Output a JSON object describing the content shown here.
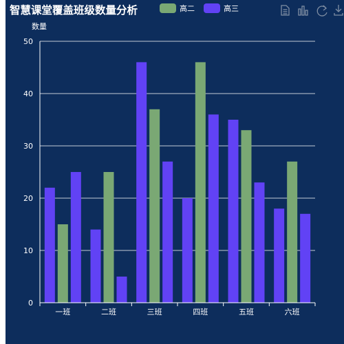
{
  "colors": {
    "background": "#0d2d5c",
    "text": "#ffffff",
    "toolbox": "#7f8ea3",
    "grid": "#ffffff"
  },
  "toolbox": {
    "icons": [
      "data-view-icon",
      "bar-chart-icon",
      "restore-icon",
      "save-image-icon"
    ]
  },
  "chart_data": {
    "type": "bar",
    "title": "智慧课堂覆盖班级数量分析",
    "ylabel": "数量",
    "xlabel": "",
    "ylim": [
      0,
      50
    ],
    "yticks": [
      0,
      10,
      20,
      30,
      40,
      50
    ],
    "grid": true,
    "legend_position": "top",
    "categories": [
      "一班",
      "二班",
      "三班",
      "四班",
      "五班",
      "六班"
    ],
    "series": [
      {
        "name": "",
        "color": "#6142f5",
        "values": [
          22,
          14,
          46,
          20,
          35,
          18
        ],
        "legend": false
      },
      {
        "name": "高二",
        "color": "#7aa874",
        "values": [
          15,
          25,
          37,
          46,
          33,
          27
        ],
        "legend": true
      },
      {
        "name": "高三",
        "color": "#6142f5",
        "values": [
          25,
          5,
          27,
          36,
          23,
          17
        ],
        "legend": true
      }
    ]
  }
}
